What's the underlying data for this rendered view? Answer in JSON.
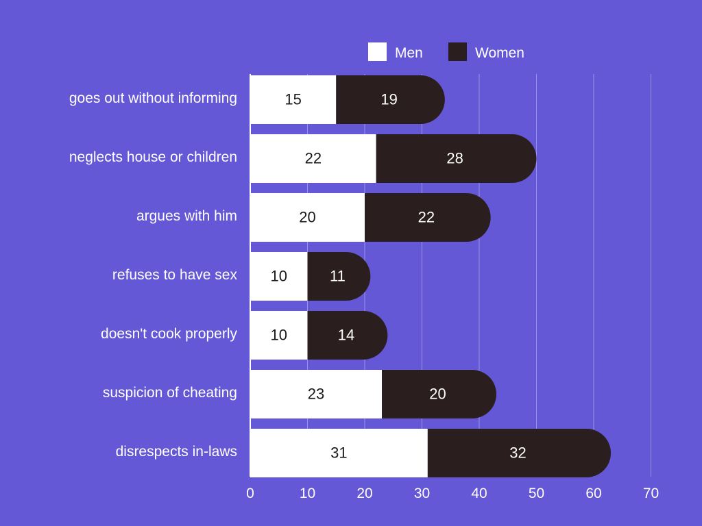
{
  "colors": {
    "background": "#6458d6",
    "men": "#ffffff",
    "women": "#2a1e1f",
    "grid": "#9a92e6",
    "text_light": "#ffffff",
    "text_dark": "#1a1a1a"
  },
  "legend": {
    "men_label": "Men",
    "women_label": "Women"
  },
  "chart_data": {
    "type": "bar",
    "orientation": "horizontal",
    "stacked": true,
    "title": "",
    "xlabel": "",
    "ylabel": "",
    "xlim": [
      0,
      70
    ],
    "xticks": [
      0,
      10,
      20,
      30,
      40,
      50,
      60,
      70
    ],
    "grid": true,
    "legend_position": "top-right",
    "categories": [
      "goes out without informing",
      "neglects house or children",
      "argues with him",
      "refuses to have sex",
      "doesn't cook properly",
      "suspicion of cheating",
      "disrespects in-laws"
    ],
    "series": [
      {
        "name": "Men",
        "values": [
          15,
          22,
          20,
          10,
          10,
          23,
          31
        ]
      },
      {
        "name": "Women",
        "values": [
          19,
          28,
          22,
          11,
          14,
          20,
          32
        ]
      }
    ]
  }
}
